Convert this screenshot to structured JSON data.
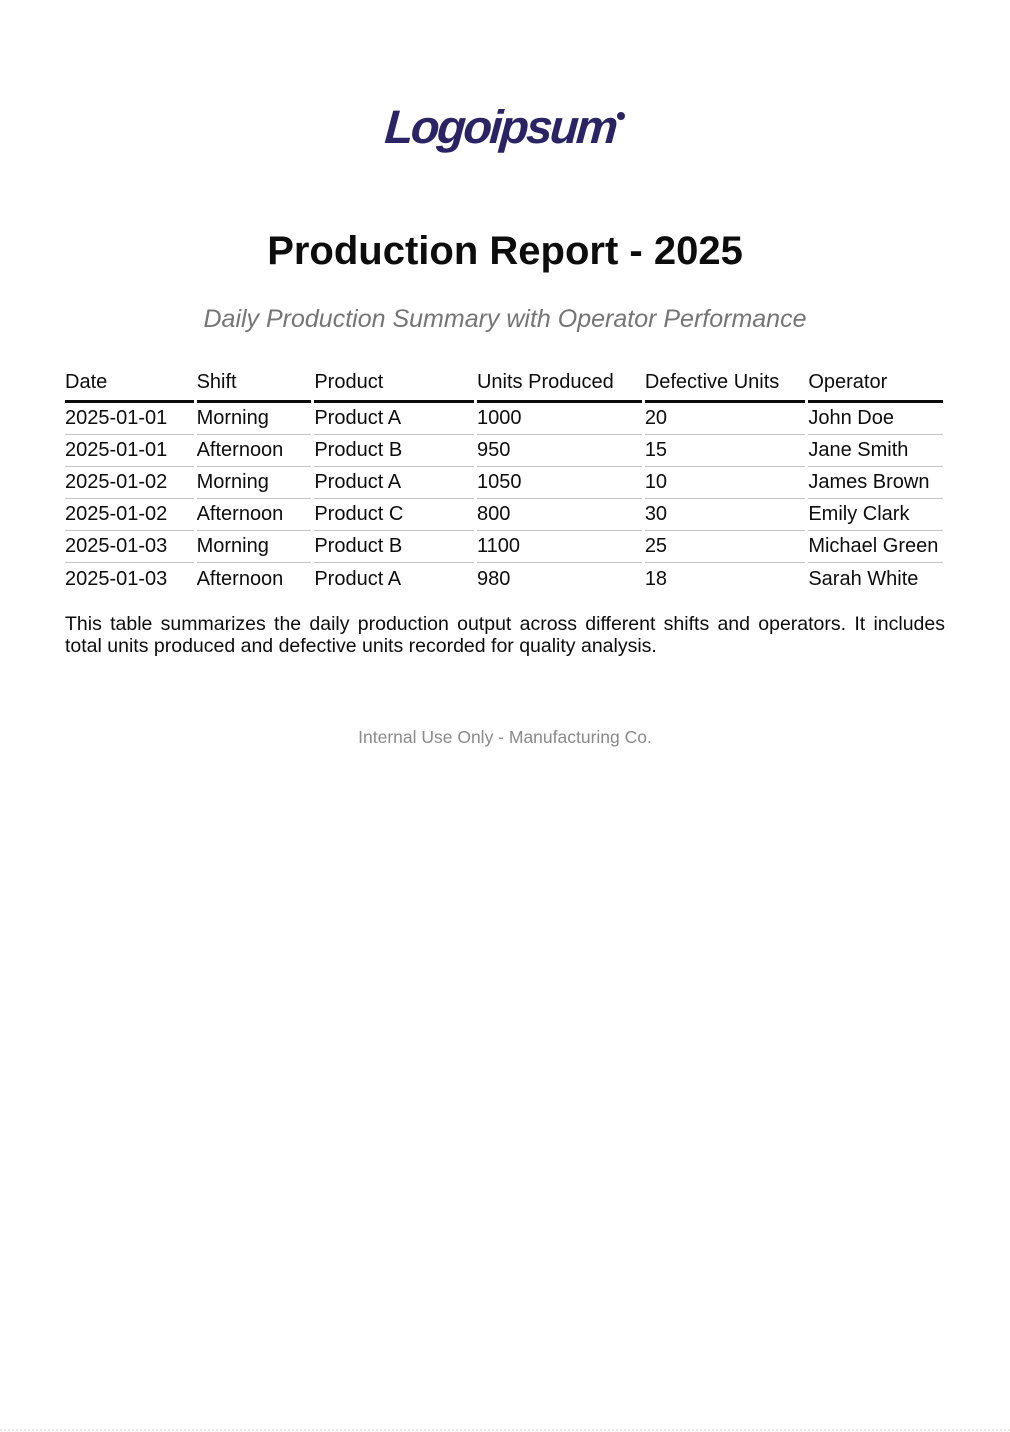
{
  "page": {
    "logo_text": "Logoipsum",
    "title": "Production Report - 2025",
    "subtitle": "Daily Production Summary with Operator Performance",
    "description": "This table summarizes the daily production output across different shifts and operators. It includes total units produced and defective units recorded for quality analysis.",
    "footer": "Internal Use Only - Manufacturing Co."
  },
  "colors": {
    "logo": "#2a2465",
    "title_text": "#0d0d0d",
    "subtitle_gray": "#757575",
    "footer_gray": "#8a8a8a",
    "header_rule": "#0a0a0a",
    "row_rule": "#c5c5c5"
  },
  "table": {
    "columns": [
      "Date",
      "Shift",
      "Product",
      "Units Produced",
      "Defective Units",
      "Operator"
    ],
    "rows": [
      [
        "2025-01-01",
        "Morning",
        "Product A",
        "1000",
        "20",
        "John Doe"
      ],
      [
        "2025-01-01",
        "Afternoon",
        "Product B",
        "950",
        "15",
        "Jane Smith"
      ],
      [
        "2025-01-02",
        "Morning",
        "Product A",
        "1050",
        "10",
        "James Brown"
      ],
      [
        "2025-01-02",
        "Afternoon",
        "Product C",
        "800",
        "30",
        "Emily Clark"
      ],
      [
        "2025-01-03",
        "Morning",
        "Product B",
        "1100",
        "25",
        "Michael Green"
      ],
      [
        "2025-01-03",
        "Afternoon",
        "Product A",
        "980",
        "18",
        "Sarah White"
      ]
    ]
  }
}
